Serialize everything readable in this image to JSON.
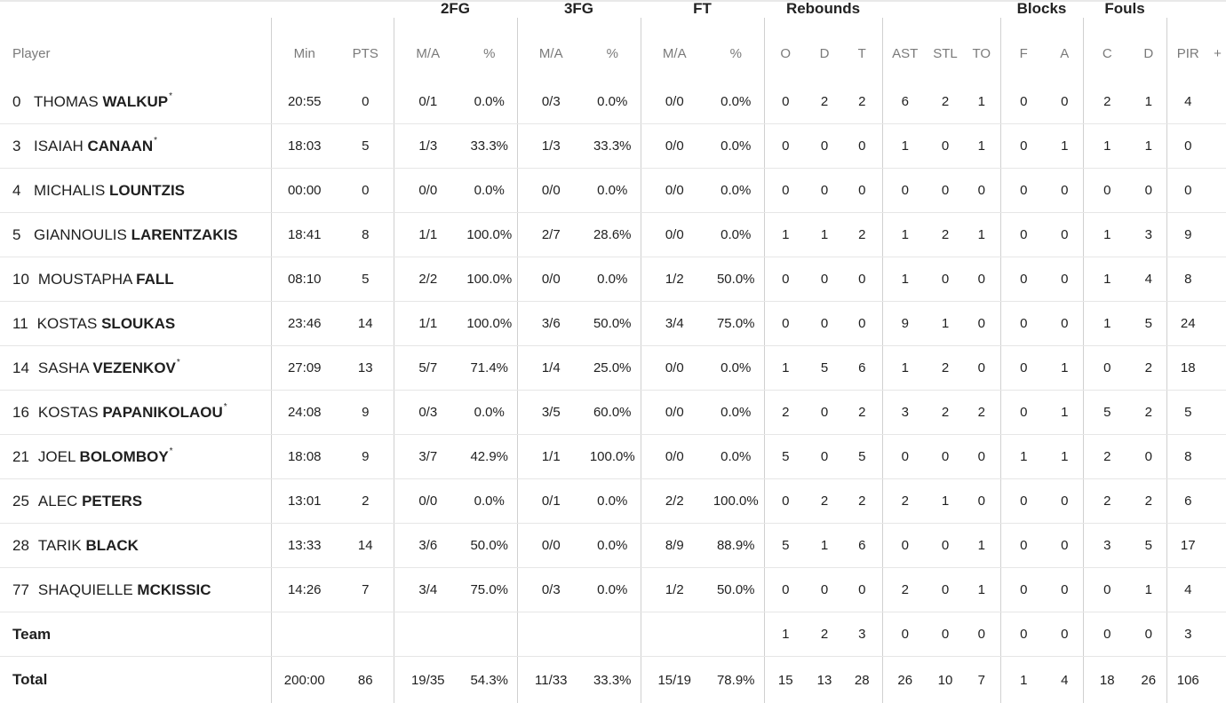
{
  "group_headers": {
    "fg2": "2FG",
    "fg3": "3FG",
    "ft": "FT",
    "rebounds": "Rebounds",
    "blocks": "Blocks",
    "fouls": "Fouls"
  },
  "columns": {
    "player": "Player",
    "min": "Min",
    "pts": "PTS",
    "fg2_ma": "M/A",
    "fg2_pct": "%",
    "fg3_ma": "M/A",
    "fg3_pct": "%",
    "ft_ma": "M/A",
    "ft_pct": "%",
    "reb_o": "O",
    "reb_d": "D",
    "reb_t": "T",
    "ast": "AST",
    "stl": "STL",
    "to": "TO",
    "blk_f": "F",
    "blk_a": "A",
    "foul_c": "C",
    "foul_d": "D",
    "pir": "PIR",
    "plus": "+"
  },
  "players": [
    {
      "number": "0",
      "first": "THOMAS",
      "last": "WALKUP",
      "starter": "*",
      "min": "20:55",
      "pts": "0",
      "fg2": "0/1",
      "fg2p": "0.0%",
      "fg3": "0/3",
      "fg3p": "0.0%",
      "ft": "0/0",
      "ftp": "0.0%",
      "o": "0",
      "d": "2",
      "t": "2",
      "ast": "6",
      "stl": "2",
      "to": "1",
      "bf": "0",
      "ba": "0",
      "fc": "2",
      "fd": "1",
      "pir": "4"
    },
    {
      "number": "3",
      "first": "ISAIAH",
      "last": "CANAAN",
      "starter": "*",
      "min": "18:03",
      "pts": "5",
      "fg2": "1/3",
      "fg2p": "33.3%",
      "fg3": "1/3",
      "fg3p": "33.3%",
      "ft": "0/0",
      "ftp": "0.0%",
      "o": "0",
      "d": "0",
      "t": "0",
      "ast": "1",
      "stl": "0",
      "to": "1",
      "bf": "0",
      "ba": "1",
      "fc": "1",
      "fd": "1",
      "pir": "0"
    },
    {
      "number": "4",
      "first": "MICHALIS",
      "last": "LOUNTZIS",
      "starter": "",
      "min": "00:00",
      "pts": "0",
      "fg2": "0/0",
      "fg2p": "0.0%",
      "fg3": "0/0",
      "fg3p": "0.0%",
      "ft": "0/0",
      "ftp": "0.0%",
      "o": "0",
      "d": "0",
      "t": "0",
      "ast": "0",
      "stl": "0",
      "to": "0",
      "bf": "0",
      "ba": "0",
      "fc": "0",
      "fd": "0",
      "pir": "0"
    },
    {
      "number": "5",
      "first": "GIANNOULIS",
      "last": "LARENTZAKIS",
      "starter": "",
      "min": "18:41",
      "pts": "8",
      "fg2": "1/1",
      "fg2p": "100.0%",
      "fg3": "2/7",
      "fg3p": "28.6%",
      "ft": "0/0",
      "ftp": "0.0%",
      "o": "1",
      "d": "1",
      "t": "2",
      "ast": "1",
      "stl": "2",
      "to": "1",
      "bf": "0",
      "ba": "0",
      "fc": "1",
      "fd": "3",
      "pir": "9"
    },
    {
      "number": "10",
      "first": "MOUSTAPHA",
      "last": "FALL",
      "starter": "",
      "min": "08:10",
      "pts": "5",
      "fg2": "2/2",
      "fg2p": "100.0%",
      "fg3": "0/0",
      "fg3p": "0.0%",
      "ft": "1/2",
      "ftp": "50.0%",
      "o": "0",
      "d": "0",
      "t": "0",
      "ast": "1",
      "stl": "0",
      "to": "0",
      "bf": "0",
      "ba": "0",
      "fc": "1",
      "fd": "4",
      "pir": "8"
    },
    {
      "number": "11",
      "first": "KOSTAS",
      "last": "SLOUKAS",
      "starter": "",
      "min": "23:46",
      "pts": "14",
      "fg2": "1/1",
      "fg2p": "100.0%",
      "fg3": "3/6",
      "fg3p": "50.0%",
      "ft": "3/4",
      "ftp": "75.0%",
      "o": "0",
      "d": "0",
      "t": "0",
      "ast": "9",
      "stl": "1",
      "to": "0",
      "bf": "0",
      "ba": "0",
      "fc": "1",
      "fd": "5",
      "pir": "24"
    },
    {
      "number": "14",
      "first": "SASHA",
      "last": "VEZENKOV",
      "starter": "*",
      "min": "27:09",
      "pts": "13",
      "fg2": "5/7",
      "fg2p": "71.4%",
      "fg3": "1/4",
      "fg3p": "25.0%",
      "ft": "0/0",
      "ftp": "0.0%",
      "o": "1",
      "d": "5",
      "t": "6",
      "ast": "1",
      "stl": "2",
      "to": "0",
      "bf": "0",
      "ba": "1",
      "fc": "0",
      "fd": "2",
      "pir": "18"
    },
    {
      "number": "16",
      "first": "KOSTAS",
      "last": "PAPANIKOLAOU",
      "starter": "*",
      "min": "24:08",
      "pts": "9",
      "fg2": "0/3",
      "fg2p": "0.0%",
      "fg3": "3/5",
      "fg3p": "60.0%",
      "ft": "0/0",
      "ftp": "0.0%",
      "o": "2",
      "d": "0",
      "t": "2",
      "ast": "3",
      "stl": "2",
      "to": "2",
      "bf": "0",
      "ba": "1",
      "fc": "5",
      "fd": "2",
      "pir": "5"
    },
    {
      "number": "21",
      "first": "JOEL",
      "last": "BOLOMBOY",
      "starter": "*",
      "min": "18:08",
      "pts": "9",
      "fg2": "3/7",
      "fg2p": "42.9%",
      "fg3": "1/1",
      "fg3p": "100.0%",
      "ft": "0/0",
      "ftp": "0.0%",
      "o": "5",
      "d": "0",
      "t": "5",
      "ast": "0",
      "stl": "0",
      "to": "0",
      "bf": "1",
      "ba": "1",
      "fc": "2",
      "fd": "0",
      "pir": "8"
    },
    {
      "number": "25",
      "first": "ALEC",
      "last": "PETERS",
      "starter": "",
      "min": "13:01",
      "pts": "2",
      "fg2": "0/0",
      "fg2p": "0.0%",
      "fg3": "0/1",
      "fg3p": "0.0%",
      "ft": "2/2",
      "ftp": "100.0%",
      "o": "0",
      "d": "2",
      "t": "2",
      "ast": "2",
      "stl": "1",
      "to": "0",
      "bf": "0",
      "ba": "0",
      "fc": "2",
      "fd": "2",
      "pir": "6"
    },
    {
      "number": "28",
      "first": "TARIK",
      "last": "BLACK",
      "starter": "",
      "min": "13:33",
      "pts": "14",
      "fg2": "3/6",
      "fg2p": "50.0%",
      "fg3": "0/0",
      "fg3p": "0.0%",
      "ft": "8/9",
      "ftp": "88.9%",
      "o": "5",
      "d": "1",
      "t": "6",
      "ast": "0",
      "stl": "0",
      "to": "1",
      "bf": "0",
      "ba": "0",
      "fc": "3",
      "fd": "5",
      "pir": "17"
    },
    {
      "number": "77",
      "first": "SHAQUIELLE",
      "last": "MCKISSIC",
      "starter": "",
      "min": "14:26",
      "pts": "7",
      "fg2": "3/4",
      "fg2p": "75.0%",
      "fg3": "0/3",
      "fg3p": "0.0%",
      "ft": "1/2",
      "ftp": "50.0%",
      "o": "0",
      "d": "0",
      "t": "0",
      "ast": "2",
      "stl": "0",
      "to": "1",
      "bf": "0",
      "ba": "0",
      "fc": "0",
      "fd": "1",
      "pir": "4"
    }
  ],
  "team_row": {
    "label": "Team",
    "o": "1",
    "d": "2",
    "t": "3",
    "ast": "0",
    "stl": "0",
    "to": "0",
    "bf": "0",
    "ba": "0",
    "fc": "0",
    "fd": "0",
    "pir": "3"
  },
  "total_row": {
    "label": "Total",
    "min": "200:00",
    "pts": "86",
    "fg2": "19/35",
    "fg2p": "54.3%",
    "fg3": "11/33",
    "fg3p": "33.3%",
    "ft": "15/19",
    "ftp": "78.9%",
    "o": "15",
    "d": "13",
    "t": "28",
    "ast": "26",
    "stl": "10",
    "to": "7",
    "bf": "1",
    "ba": "4",
    "fc": "18",
    "fd": "26",
    "pir": "106"
  }
}
